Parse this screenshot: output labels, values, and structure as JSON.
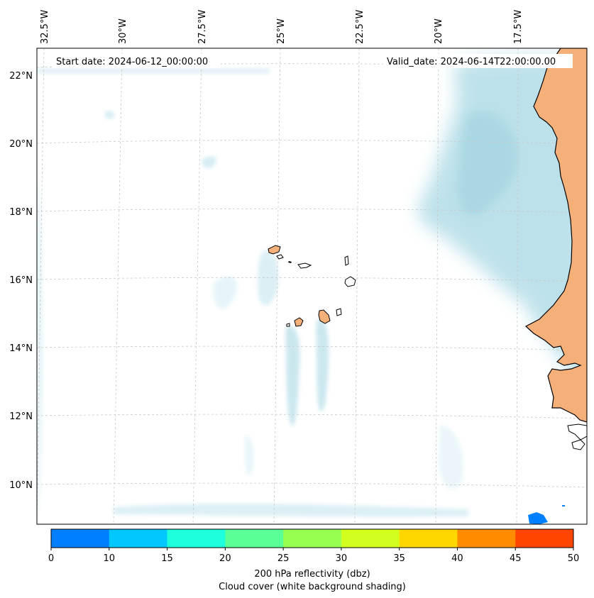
{
  "header": {
    "start_date": "Start date: 2024-06-12_00:00:00",
    "valid_date": "Valid_date: 2024-06-14T22:00:00.00"
  },
  "map": {
    "lon_labels": [
      "32.5°W",
      "30°W",
      "27.5°W",
      "25°W",
      "22.5°W",
      "20°W",
      "17.5°W"
    ],
    "lat_labels": [
      "22°N",
      "20°N",
      "18°N",
      "16°N",
      "14°N",
      "12°N",
      "10°N"
    ],
    "gridlines": "dashed-light-gray"
  },
  "colorbar": {
    "label_line1": "200 hPa reflectivity (dbz)",
    "label_line2": "Cloud cover (white background shading)",
    "ticks": [
      "0",
      "10",
      "15",
      "20",
      "25",
      "30",
      "35",
      "40",
      "45",
      "50"
    ],
    "colors": [
      "#0080ff",
      "#00c8ff",
      "#1effdc",
      "#5aff96",
      "#96ff50",
      "#d2ff1e",
      "#ffd700",
      "#ff8c00",
      "#ff4500"
    ]
  },
  "colors": {
    "cloud": "#a8d8e4",
    "land": "#f5b07a",
    "coast": "#000000",
    "grid": "#c8c8c8"
  }
}
